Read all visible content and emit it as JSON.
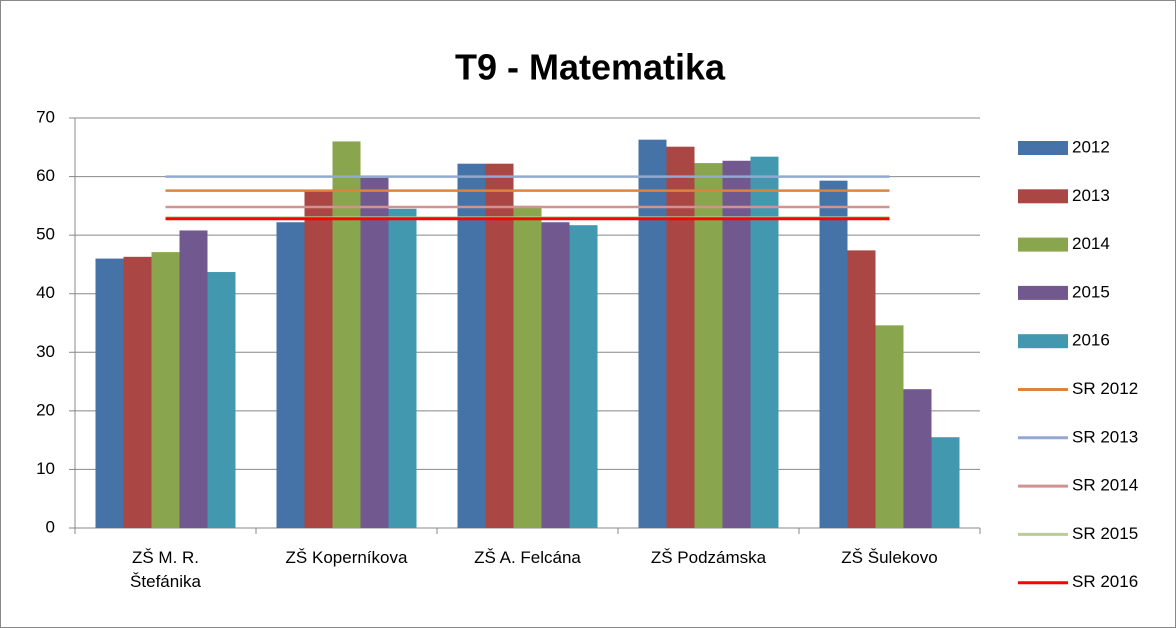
{
  "chart_data": {
    "type": "bar",
    "title": "T9 - Matematika",
    "categories": [
      "ZŠ M. R.\nŠtefánika",
      "ZŠ Koperníkova",
      "ZŠ A. Felcána",
      "ZŠ Podzámska",
      "ZŠ Šulekovo"
    ],
    "series": [
      {
        "name": "2012",
        "color": "#4572a7",
        "values": [
          46,
          52.2,
          62.2,
          66.3,
          59.3
        ]
      },
      {
        "name": "2013",
        "color": "#aa4643",
        "values": [
          46.3,
          57.5,
          62.2,
          65.1,
          47.4
        ]
      },
      {
        "name": "2014",
        "color": "#89a54e",
        "values": [
          47.1,
          66,
          55,
          62.3,
          34.6
        ]
      },
      {
        "name": "2015",
        "color": "#71588f",
        "values": [
          50.8,
          59.8,
          52.2,
          62.7,
          23.7
        ]
      },
      {
        "name": "2016",
        "color": "#4198af",
        "values": [
          43.7,
          54.5,
          51.7,
          63.4,
          15.5
        ]
      },
      {
        "name": "SR 2012",
        "type": "line",
        "color": "#db843d",
        "values": [
          57.6,
          57.6,
          57.6,
          57.6,
          57.6
        ]
      },
      {
        "name": "SR 2013",
        "type": "line",
        "color": "#93a9cf",
        "values": [
          60,
          60,
          60,
          60,
          60
        ]
      },
      {
        "name": "SR 2014",
        "type": "line",
        "color": "#d19392",
        "values": [
          54.8,
          54.8,
          54.8,
          54.8,
          54.8
        ]
      },
      {
        "name": "SR 2015",
        "type": "line",
        "color": "#b9cd96",
        "values": [
          53,
          53,
          53,
          53,
          53
        ]
      },
      {
        "name": "SR 2016",
        "type": "line",
        "color": "#ff0000",
        "values": [
          52.8,
          52.8,
          52.8,
          52.8,
          52.8
        ]
      }
    ],
    "ylim": [
      0,
      70
    ],
    "yticks": [
      0,
      10,
      20,
      30,
      40,
      50,
      60,
      70
    ],
    "grid": true,
    "legend": "right"
  }
}
